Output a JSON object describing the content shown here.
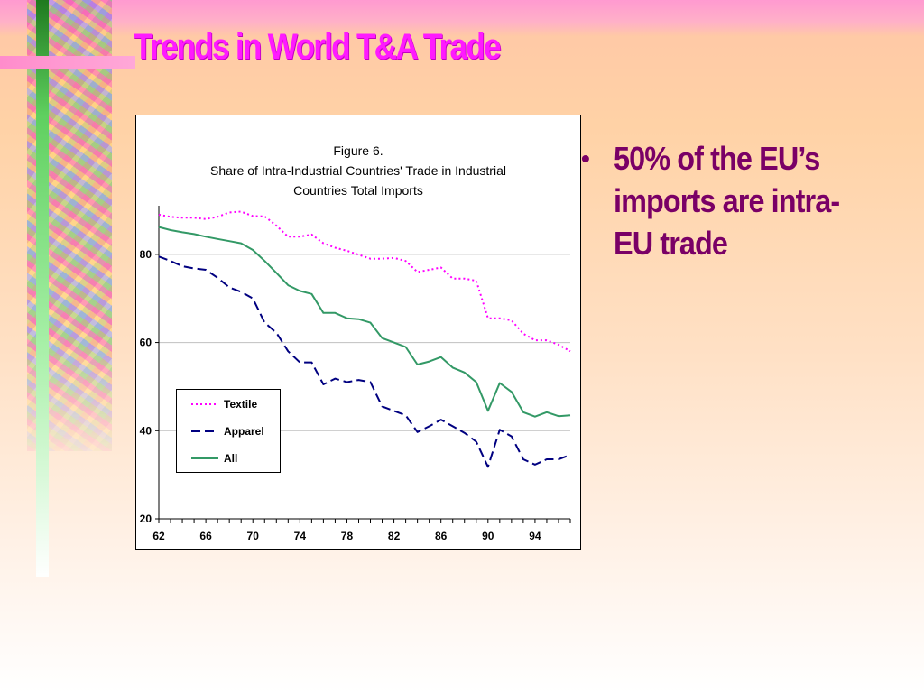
{
  "slide": {
    "title": "Trends in World T&A Trade",
    "bullets": [
      "50% of the EU’s imports are intra-EU trade"
    ]
  },
  "colors": {
    "title": "#ff1aff",
    "bullet_text": "#7a0066",
    "textile": "#ff00ff",
    "apparel": "#000080",
    "all": "#339966",
    "gridline": "#c0c0c0"
  },
  "chart_data": {
    "type": "line",
    "title_line1": "Figure 6.",
    "title_line2": "Share of Intra-Industrial Countries' Trade in Industrial",
    "title_line3": "Countries Total Imports",
    "xlabel": "",
    "ylabel": "",
    "xlim": [
      62,
      97
    ],
    "ylim": [
      20,
      90
    ],
    "x_ticks": [
      62,
      66,
      70,
      74,
      78,
      82,
      86,
      90,
      94
    ],
    "y_ticks": [
      20,
      40,
      60,
      80
    ],
    "grid": true,
    "legend_position": "lower-left",
    "x": [
      62,
      63,
      64,
      65,
      66,
      67,
      68,
      69,
      70,
      71,
      72,
      73,
      74,
      75,
      76,
      77,
      78,
      79,
      80,
      81,
      82,
      83,
      84,
      85,
      86,
      87,
      88,
      89,
      90,
      91,
      92,
      93,
      94,
      95,
      96,
      97
    ],
    "series": [
      {
        "name": "Textile",
        "style": "dotted",
        "values": [
          89,
          88.5,
          88.3,
          88.3,
          88,
          88.5,
          89.5,
          89.7,
          88.7,
          88.6,
          86.5,
          84,
          84,
          84.5,
          82.5,
          81.5,
          80.8,
          79.9,
          79,
          79,
          79.2,
          78.5,
          76,
          76.5,
          77,
          74.5,
          74.5,
          74,
          65.5,
          65.5,
          65,
          62,
          60.5,
          60.5,
          59.5,
          58
        ]
      },
      {
        "name": "Apparel",
        "style": "dashed",
        "values": [
          79.5,
          78.5,
          77.3,
          76.8,
          76.5,
          74.7,
          72.5,
          71.5,
          70,
          64.5,
          62.2,
          58,
          55.5,
          55.5,
          50.5,
          51.8,
          51,
          51.5,
          51,
          45.5,
          44.5,
          43.5,
          39.7,
          41,
          42.5,
          41,
          39.5,
          37.5,
          31.8,
          40.2,
          38.7,
          33.5,
          32.3,
          33.5,
          33.5,
          34.5
        ]
      },
      {
        "name": "All",
        "style": "solid",
        "values": [
          86.2,
          85.5,
          85,
          84.6,
          84,
          83.5,
          83,
          82.5,
          81,
          78.5,
          75.8,
          73,
          71.7,
          71,
          66.7,
          66.7,
          65.5,
          65.3,
          64.5,
          61,
          60,
          59,
          55,
          55.7,
          56.7,
          54.3,
          53.2,
          51,
          44.5,
          50.8,
          48.8,
          44.2,
          43.2,
          44.2,
          43.3,
          43.5
        ]
      }
    ]
  }
}
